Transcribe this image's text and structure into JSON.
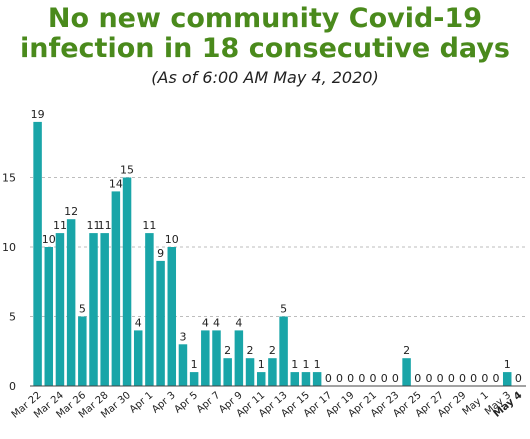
{
  "title_line1": "No new community Covid-19",
  "title_line2": "infection in 18 consecutive days",
  "subtitle": "(As of 6:00 AM May 4, 2020)",
  "colors": {
    "bar": "#19a5a8",
    "title": "#4a8a1c",
    "grid": "#bdbdbd"
  },
  "chart_data": {
    "type": "bar",
    "title": "No new community Covid-19 infection in 18 consecutive days",
    "subtitle": "(As of 6:00 AM May 4, 2020)",
    "xlabel": "",
    "ylabel": "",
    "ylim": [
      0,
      20
    ],
    "yticks": [
      0,
      5,
      10,
      15
    ],
    "grid": true,
    "categories": [
      "Mar 22",
      "Mar 23",
      "Mar 24",
      "Mar 25",
      "Mar 26",
      "Mar 27",
      "Mar 28",
      "Mar 29",
      "Mar 30",
      "Mar 31",
      "Apr 1",
      "Apr 2",
      "Apr 3",
      "Apr 4",
      "Apr 5",
      "Apr 6",
      "Apr 7",
      "Apr 8",
      "Apr 9",
      "Apr 10",
      "Apr 11",
      "Apr 12",
      "Apr 13",
      "Apr 14",
      "Apr 15",
      "Apr 16",
      "Apr 17",
      "Apr 18",
      "Apr 19",
      "Apr 20",
      "Apr 21",
      "Apr 22",
      "Apr 23",
      "Apr 24",
      "Apr 25",
      "Apr 26",
      "Apr 27",
      "Apr 28",
      "Apr 29",
      "Apr 30",
      "May 1",
      "May 2",
      "May 3",
      "May 4"
    ],
    "tick_labels": [
      "Mar 22",
      "Mar 24",
      "Mar 26",
      "Mar 28",
      "Mar 30",
      "Apr 1",
      "Apr 3",
      "Apr 5",
      "Apr 7",
      "Apr 9",
      "Apr 11",
      "Apr 13",
      "Apr 15",
      "Apr 17",
      "Apr 19",
      "Apr 21",
      "Apr 23",
      "Apr 25",
      "Apr 27",
      "Apr 29",
      "May 1",
      "May 3",
      "May 4"
    ],
    "values": [
      19,
      10,
      11,
      12,
      5,
      11,
      11,
      14,
      15,
      4,
      11,
      9,
      10,
      3,
      1,
      4,
      4,
      2,
      4,
      2,
      1,
      2,
      5,
      1,
      1,
      1,
      0,
      0,
      0,
      0,
      0,
      0,
      0,
      2,
      0,
      0,
      0,
      0,
      0,
      0,
      0,
      0,
      1,
      0
    ]
  }
}
